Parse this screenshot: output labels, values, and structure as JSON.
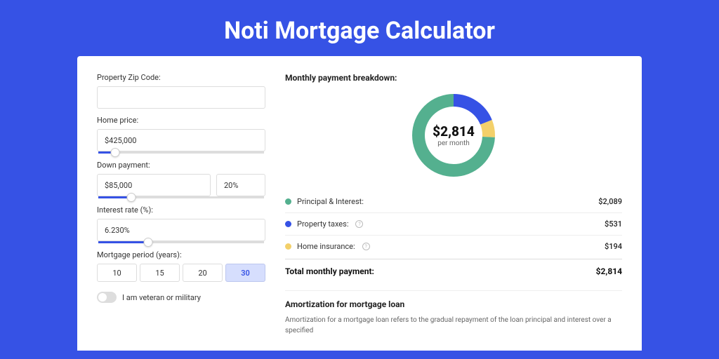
{
  "page_title": "Noti Mortgage Calculator",
  "colors": {
    "page_bg": "#3652e5",
    "panel_bg": "#ffffff",
    "principal": "#54b08f",
    "taxes": "#3652e5",
    "insurance": "#f3d06a"
  },
  "form": {
    "zip": {
      "label": "Property Zip Code:",
      "value": ""
    },
    "home_price": {
      "label": "Home price:",
      "value": "$425,000",
      "slider_pct": 10
    },
    "down_payment": {
      "label": "Down payment:",
      "amount": "$85,000",
      "percent": "20%",
      "slider_pct": 20
    },
    "interest_rate": {
      "label": "Interest rate (%):",
      "value": "6.230%",
      "slider_pct": 30
    },
    "period": {
      "label": "Mortgage period (years):",
      "options": [
        "10",
        "15",
        "20",
        "30"
      ],
      "selected": "30"
    },
    "veteran": {
      "label": "I am veteran or military",
      "checked": false
    }
  },
  "breakdown": {
    "title": "Monthly payment breakdown:",
    "donut": {
      "value_text": "$2,814",
      "sub_text": "per month",
      "segments": [
        {
          "key": "principal",
          "value": 2089,
          "color": "#54b08f"
        },
        {
          "key": "taxes",
          "value": 531,
          "color": "#3652e5"
        },
        {
          "key": "insurance",
          "value": 194,
          "color": "#f3d06a"
        }
      ],
      "total": 2814
    },
    "rows": [
      {
        "label": "Principal & Interest:",
        "value": "$2,089",
        "color": "#54b08f",
        "info": false
      },
      {
        "label": "Property taxes:",
        "value": "$531",
        "color": "#3652e5",
        "info": true
      },
      {
        "label": "Home insurance:",
        "value": "$194",
        "color": "#f3d06a",
        "info": true
      }
    ],
    "total": {
      "label": "Total monthly payment:",
      "value": "$2,814"
    }
  },
  "amortization": {
    "title": "Amortization for mortgage loan",
    "text": "Amortization for a mortgage loan refers to the gradual repayment of the loan principal and interest over a specified"
  }
}
